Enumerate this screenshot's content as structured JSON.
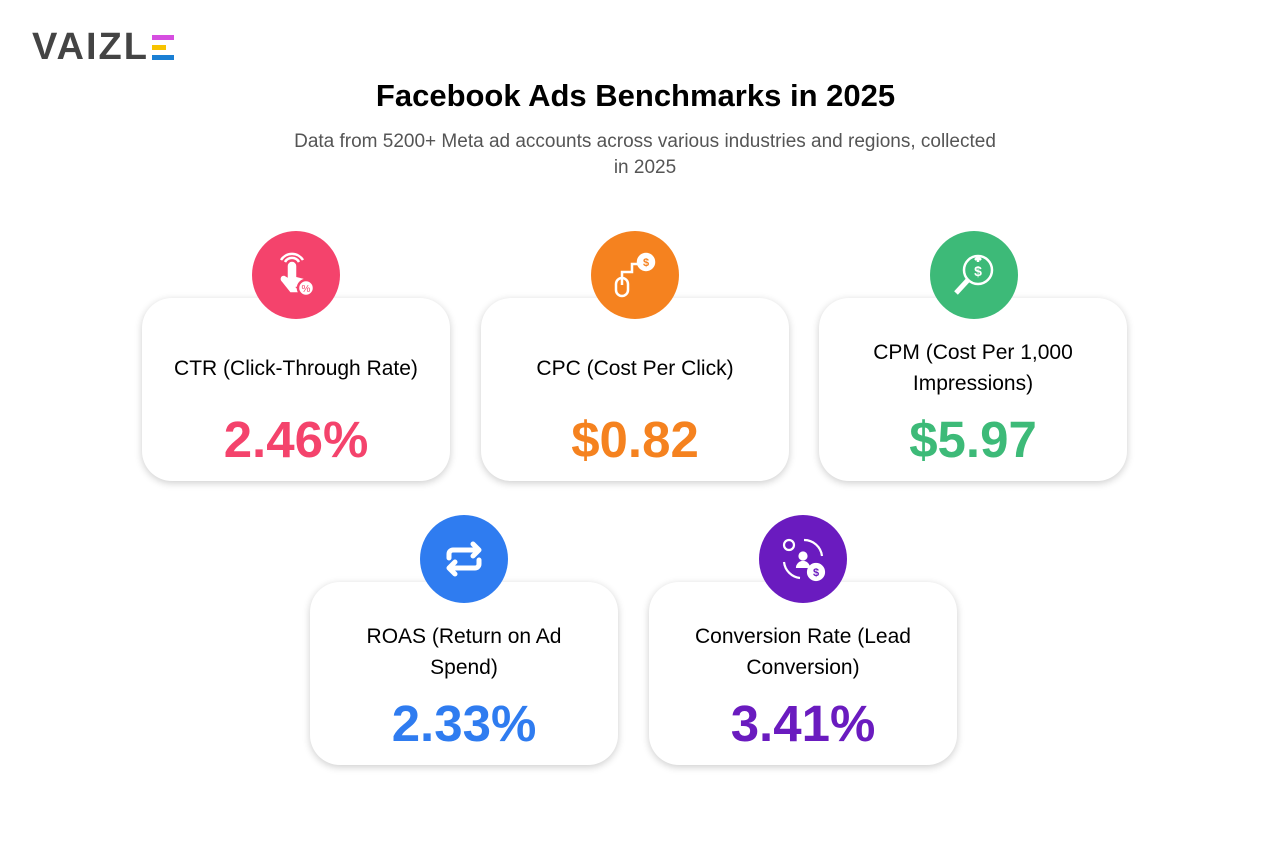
{
  "logo": {
    "text": "VAIZL",
    "bar_colors": [
      "#d64ee0",
      "#f7c300",
      "#1a7fd4"
    ]
  },
  "title": "Facebook Ads Benchmarks in 2025",
  "subtitle": "Data from 5200+ Meta ad accounts across various industries and regions, collected in 2025",
  "metrics": [
    {
      "label": "CTR (Click-Through Rate)",
      "value": "2.46%",
      "color": "#f4436c",
      "icon": "hand-click-percent-icon"
    },
    {
      "label": "CPC (Cost Per Click)",
      "value": "$0.82",
      "color": "#f5821f",
      "icon": "mouse-dollar-icon"
    },
    {
      "label": "CPM (Cost Per 1,000 Impressions)",
      "value": "$5.97",
      "color": "#3dba78",
      "icon": "magnifier-dollar-icon"
    },
    {
      "label": "ROAS (Return on Ad Spend)",
      "value": "2.33%",
      "color": "#2f7cf0",
      "icon": "exchange-arrows-icon"
    },
    {
      "label": "Conversion Rate (Lead Conversion)",
      "value": "3.41%",
      "color": "#6a1bbf",
      "icon": "conversion-cycle-icon"
    }
  ]
}
